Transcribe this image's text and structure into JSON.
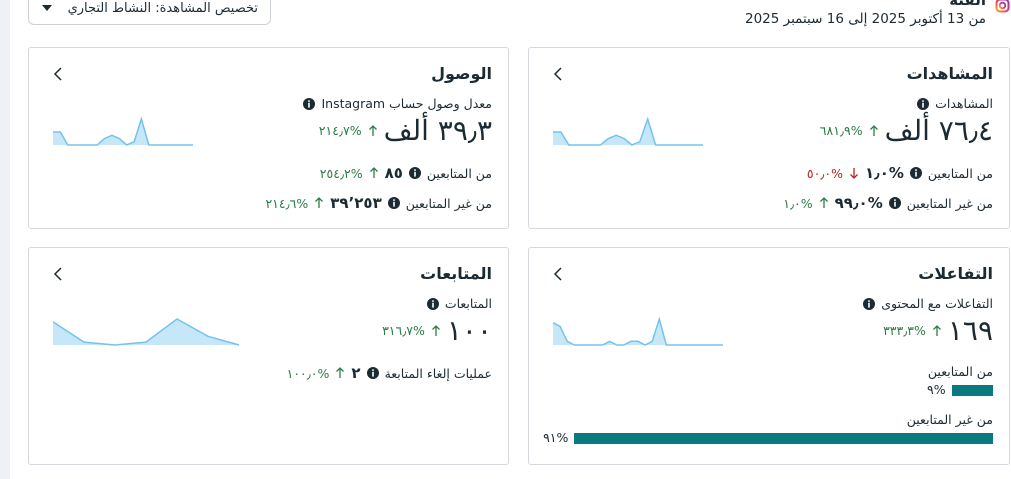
{
  "header": {
    "title": "الفئة",
    "date_range": "من 13 أكتوبر 2025 إلى 16 سبتمبر 2025"
  },
  "view_selector": "تخصيص المشاهدة: النشاط التجاري",
  "cards": [
    {
      "title": "المشاهدات",
      "metric_label": "المشاهدات",
      "value": "٧٦٫٤ ألف",
      "change": "%٦٨١٫٩",
      "trend": "up",
      "sparkline": [
        4,
        4,
        0,
        0,
        0,
        0,
        0,
        2,
        3,
        2,
        0,
        1,
        8,
        0,
        0,
        0,
        0,
        0,
        0,
        0
      ],
      "breakdown": [
        {
          "label": "من المتابعين",
          "value": "%١٫٠",
          "change": "%٥٠٫٠",
          "trend": "down"
        },
        {
          "label": "من غير المتابعين",
          "value": "%٩٩٫٠",
          "change": "%١٫٠",
          "trend": "up"
        }
      ]
    },
    {
      "title": "الوصول",
      "metric_label": "معدل وصول حساب Instagram",
      "value": "٣٩٫٣ ألف",
      "change": "%٢١٤٫٧",
      "trend": "up",
      "sparkline": [
        4,
        4,
        0,
        0,
        0,
        0,
        0,
        2,
        3,
        2,
        0,
        1,
        8,
        0,
        0,
        0,
        0,
        0,
        0,
        0
      ],
      "breakdown": [
        {
          "label": "من المتابعين",
          "value": "٨٥",
          "change": "%٢٥٤٫٢",
          "trend": "up"
        },
        {
          "label": "من غير المتابعين",
          "value": "٣٩٬٢٥٣",
          "change": "%٢١٤٫٦",
          "trend": "up"
        }
      ]
    },
    {
      "title": "التفاعلات",
      "metric_label": "التفاعلات مع المحتوى",
      "value": "١٦٩",
      "change": "%٣٣٣٫٣",
      "trend": "up",
      "sparkline": [
        6,
        5,
        1,
        0,
        0,
        0,
        0,
        0,
        1,
        0,
        0,
        1,
        1,
        0,
        1,
        7,
        0,
        0,
        0,
        0,
        0,
        0,
        0,
        0,
        0
      ],
      "bars": [
        {
          "label": "من المتابعين",
          "value": 9,
          "value_label": "%٩"
        },
        {
          "label": "من غير المتابعين",
          "value": 91,
          "value_label": "%٩١"
        }
      ]
    },
    {
      "title": "المتابعات",
      "metric_label": "المتابعات",
      "value": "١٠٠",
      "change": "%٣١٦٫٧",
      "trend": "up",
      "sparkline": [
        8,
        1,
        0,
        1,
        9,
        3,
        0
      ],
      "breakdown": [
        {
          "label": "عمليات إلغاء المتابعة",
          "value": "٢",
          "change": "%١٠٠٫٠",
          "trend": "up"
        }
      ]
    }
  ]
}
